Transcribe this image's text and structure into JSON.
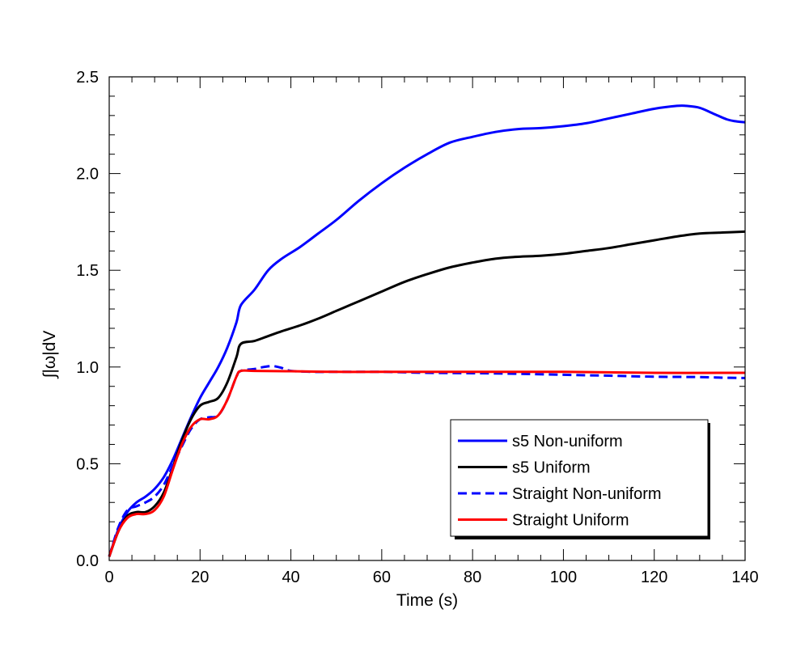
{
  "chart_data": {
    "type": "line",
    "title": "",
    "xlabel": "Time (s)",
    "ylabel": "∫|ω|dV",
    "xlim": [
      0,
      140
    ],
    "ylim": [
      0,
      2.5
    ],
    "x_ticks": [
      0,
      20,
      40,
      60,
      80,
      100,
      120,
      140
    ],
    "y_ticks": [
      0.0,
      0.5,
      1.0,
      1.5,
      2.0,
      2.5
    ],
    "x_tick_labels": [
      "0",
      "20",
      "40",
      "60",
      "80",
      "100",
      "120",
      "140"
    ],
    "y_tick_labels": [
      "0.0",
      "0.5",
      "1.0",
      "1.5",
      "2.0",
      "2.5"
    ],
    "x_minor_step": 5,
    "y_minor_step": 0.1,
    "grid": false,
    "legend_position": "lower-right",
    "series": [
      {
        "name": "s5 Non-uniform",
        "color": "#0000ff",
        "dash": "solid",
        "x": [
          0,
          2,
          4,
          6,
          8,
          10,
          12,
          14,
          16,
          18,
          20,
          22,
          24,
          26,
          28,
          29,
          32,
          35,
          38,
          42,
          46,
          50,
          55,
          60,
          65,
          70,
          75,
          80,
          85,
          90,
          95,
          100,
          105,
          110,
          115,
          120,
          125,
          127,
          130,
          133,
          136,
          138,
          140
        ],
        "y": [
          0.02,
          0.16,
          0.25,
          0.3,
          0.33,
          0.37,
          0.43,
          0.52,
          0.63,
          0.74,
          0.84,
          0.92,
          1.0,
          1.1,
          1.23,
          1.32,
          1.4,
          1.5,
          1.56,
          1.62,
          1.69,
          1.76,
          1.86,
          1.95,
          2.03,
          2.1,
          2.16,
          2.19,
          2.215,
          2.23,
          2.235,
          2.245,
          2.26,
          2.285,
          2.31,
          2.335,
          2.35,
          2.35,
          2.34,
          2.31,
          2.28,
          2.27,
          2.265
        ]
      },
      {
        "name": "s5 Uniform",
        "color": "#000000",
        "dash": "solid",
        "x": [
          0,
          2,
          4,
          6,
          8,
          10,
          12,
          14,
          16,
          18,
          20,
          22,
          24,
          26,
          28,
          29,
          32,
          35,
          38,
          42,
          46,
          50,
          55,
          60,
          65,
          70,
          75,
          80,
          85,
          90,
          95,
          100,
          105,
          110,
          115,
          120,
          125,
          130,
          135,
          140
        ],
        "y": [
          0.02,
          0.15,
          0.23,
          0.25,
          0.25,
          0.28,
          0.35,
          0.48,
          0.62,
          0.73,
          0.8,
          0.82,
          0.84,
          0.92,
          1.05,
          1.12,
          1.135,
          1.16,
          1.185,
          1.215,
          1.25,
          1.29,
          1.34,
          1.39,
          1.44,
          1.48,
          1.515,
          1.54,
          1.56,
          1.57,
          1.575,
          1.585,
          1.6,
          1.615,
          1.635,
          1.655,
          1.675,
          1.69,
          1.695,
          1.7
        ]
      },
      {
        "name": "Straight Non-uniform",
        "color": "#0000ff",
        "dash": "dashed",
        "x": [
          0,
          2,
          4,
          6,
          8,
          10,
          12,
          14,
          16,
          18,
          20,
          22,
          24,
          26,
          28,
          29,
          32,
          34,
          36,
          38,
          40,
          45,
          50,
          60,
          70,
          80,
          90,
          100,
          110,
          120,
          130,
          135,
          140
        ],
        "y": [
          0.02,
          0.17,
          0.26,
          0.28,
          0.3,
          0.33,
          0.39,
          0.49,
          0.59,
          0.68,
          0.73,
          0.74,
          0.75,
          0.83,
          0.95,
          0.98,
          0.99,
          1.0,
          1.005,
          0.995,
          0.98,
          0.975,
          0.975,
          0.975,
          0.97,
          0.968,
          0.965,
          0.96,
          0.955,
          0.95,
          0.948,
          0.945,
          0.943
        ]
      },
      {
        "name": "Straight Uniform",
        "color": "#ff0000",
        "dash": "solid",
        "x": [
          0,
          2,
          4,
          6,
          8,
          10,
          12,
          14,
          16,
          18,
          20,
          22,
          24,
          26,
          28,
          29,
          32,
          40,
          50,
          60,
          80,
          100,
          120,
          140
        ],
        "y": [
          0.02,
          0.15,
          0.22,
          0.24,
          0.24,
          0.26,
          0.33,
          0.47,
          0.6,
          0.69,
          0.73,
          0.73,
          0.75,
          0.83,
          0.95,
          0.98,
          0.98,
          0.978,
          0.975,
          0.975,
          0.975,
          0.975,
          0.97,
          0.97
        ]
      }
    ]
  }
}
